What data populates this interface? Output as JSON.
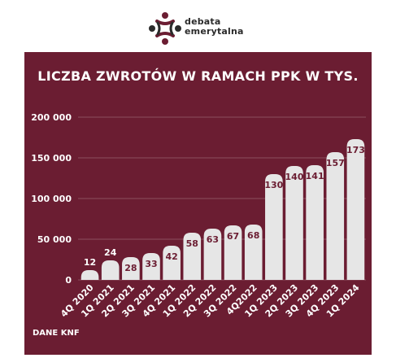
{
  "brand": {
    "name": "debata\nemerytalna",
    "logo_colors": [
      "#6b1d32",
      "#2b2b2b"
    ]
  },
  "colors": {
    "panel": "#6b1d32",
    "bar": "#e6e6e6",
    "label": "#6b1d32",
    "text": "#ffffff"
  },
  "chart_data": {
    "type": "bar",
    "title": "LICZBA ZWROTÓW W RAMACH PPK W TYS.",
    "categories": [
      "4Q 2020",
      "1Q 2021",
      "2Q 2021",
      "3Q 2021",
      "4Q 2021",
      "1Q 2022",
      "2Q 2022",
      "3Q 2022",
      "4Q2022",
      "1Q 2023",
      "2Q 2023",
      "3Q 2023",
      "4Q 2023",
      "1Q 2024"
    ],
    "values": [
      12,
      24,
      28,
      33,
      42,
      58,
      63,
      67,
      68,
      130,
      140,
      141,
      157,
      173
    ],
    "data_labels": [
      "12",
      "24",
      "28",
      "33",
      "42",
      "58",
      "63",
      "67",
      "68",
      "130",
      "140",
      "141",
      "157",
      "173"
    ],
    "yticks": [
      0,
      50000,
      100000,
      150000,
      200000
    ],
    "ytick_labels": [
      "0",
      "50 000",
      "100 000",
      "150 000",
      "200 000"
    ],
    "ylim": [
      0,
      200000
    ],
    "value_multiplier": 1000,
    "grid": true,
    "source": "DANE KNF"
  }
}
